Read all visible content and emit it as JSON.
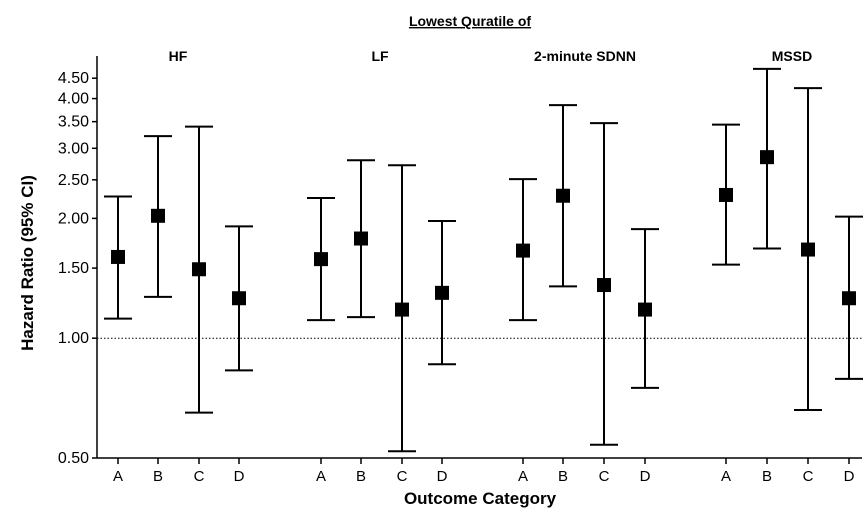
{
  "chart_data": {
    "type": "scatter",
    "subtype": "point-estimate with 95% CI error bars",
    "supertitle": "Lowest Quratile of",
    "xlabel": "Outcome Category",
    "ylabel": "Hazard Ratio (95% CI)",
    "yscale": "log",
    "ylim": [
      0.5,
      5.0
    ],
    "yticks": [
      0.5,
      1.0,
      1.5,
      2.0,
      2.5,
      3.0,
      3.5,
      4.0,
      4.5
    ],
    "ytick_labels": [
      "0.50",
      "1.00",
      "1.50",
      "2.00",
      "2.50",
      "3.00",
      "3.50",
      "4.00",
      "4.50"
    ],
    "reference_line": {
      "y": 1.0,
      "style": "dotted"
    },
    "categories": [
      "A",
      "B",
      "C",
      "D"
    ],
    "grid": false,
    "panels": [
      {
        "name": "HF",
        "points": [
          {
            "category": "A",
            "hr": 1.6,
            "lower": 1.12,
            "upper": 2.27
          },
          {
            "category": "B",
            "hr": 2.03,
            "lower": 1.27,
            "upper": 3.22
          },
          {
            "category": "C",
            "hr": 1.49,
            "lower": 0.65,
            "upper": 3.4
          },
          {
            "category": "D",
            "hr": 1.26,
            "lower": 0.83,
            "upper": 1.91
          }
        ]
      },
      {
        "name": "LF",
        "points": [
          {
            "category": "A",
            "hr": 1.58,
            "lower": 1.11,
            "upper": 2.25
          },
          {
            "category": "B",
            "hr": 1.78,
            "lower": 1.13,
            "upper": 2.8
          },
          {
            "category": "C",
            "hr": 1.18,
            "lower": 0.52,
            "upper": 2.72
          },
          {
            "category": "D",
            "hr": 1.3,
            "lower": 0.86,
            "upper": 1.97
          }
        ]
      },
      {
        "name": "2-minute SDNN",
        "points": [
          {
            "category": "A",
            "hr": 1.66,
            "lower": 1.11,
            "upper": 2.51
          },
          {
            "category": "B",
            "hr": 2.28,
            "lower": 1.35,
            "upper": 3.85
          },
          {
            "category": "C",
            "hr": 1.36,
            "lower": 0.54,
            "upper": 3.47
          },
          {
            "category": "D",
            "hr": 1.18,
            "lower": 0.75,
            "upper": 1.88
          }
        ]
      },
      {
        "name": "MSSD",
        "points": [
          {
            "category": "A",
            "hr": 2.29,
            "lower": 1.53,
            "upper": 3.44
          },
          {
            "category": "B",
            "hr": 2.85,
            "lower": 1.68,
            "upper": 4.75
          },
          {
            "category": "C",
            "hr": 1.67,
            "lower": 0.66,
            "upper": 4.25
          },
          {
            "category": "D",
            "hr": 1.26,
            "lower": 0.79,
            "upper": 2.02
          }
        ]
      }
    ]
  }
}
